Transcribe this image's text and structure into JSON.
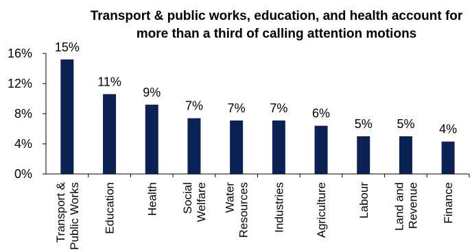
{
  "chart_data": {
    "type": "bar",
    "title_lines": [
      "Transport & public works, education, and health account for",
      "more than a third of calling attention motions"
    ],
    "categories": [
      [
        "Transport &",
        "Public Works"
      ],
      [
        "Education"
      ],
      [
        "Health"
      ],
      [
        "Social",
        "Welfare"
      ],
      [
        "Water",
        "Resources"
      ],
      [
        "Industries"
      ],
      [
        "Agriculture"
      ],
      [
        "Labour"
      ],
      [
        "Land and",
        "Revenue"
      ],
      [
        "Finance"
      ]
    ],
    "values": [
      15.2,
      10.6,
      9.2,
      7.4,
      7.1,
      7.1,
      6.4,
      5.0,
      5.0,
      4.3
    ],
    "data_labels": [
      "15%",
      "11%",
      "9%",
      "7%",
      "7%",
      "7%",
      "6%",
      "5%",
      "5%",
      "4%"
    ],
    "yticks": [
      {
        "value": 0,
        "label": "0%"
      },
      {
        "value": 4,
        "label": "4%"
      },
      {
        "value": 8,
        "label": "8%"
      },
      {
        "value": 12,
        "label": "12%"
      },
      {
        "value": 16,
        "label": "16%"
      }
    ],
    "ylim": [
      0,
      16
    ],
    "grid": false,
    "legend": "none",
    "bar_color": "#0b2254"
  }
}
